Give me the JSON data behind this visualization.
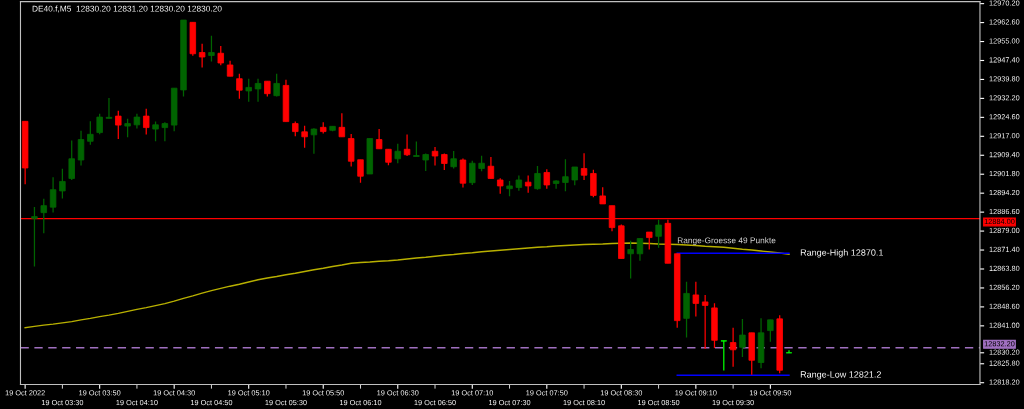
{
  "chart_data": {
    "type": "candlestick",
    "title": "DE40.f,M5  12830.20 12831.20 12830.20 12830.20",
    "categories": [
      "19 Oct 2022",
      null,
      null,
      null,
      "19 Oct 03:30",
      null,
      null,
      null,
      "19 Oct 03:50",
      null,
      null,
      null,
      "19 Oct 04:10",
      null,
      null,
      null,
      "19 Oct 04:30",
      null,
      null,
      null,
      "19 Oct 04:50",
      null,
      null,
      null,
      "19 Oct 05:10",
      null,
      null,
      null,
      "19 Oct 05:30",
      null,
      null,
      null,
      "19 Oct 05:50",
      null,
      null,
      null,
      "19 Oct 06:10",
      null,
      null,
      null,
      "19 Oct 06:30",
      null,
      null,
      null,
      "19 Oct 06:50",
      null,
      null,
      null,
      "19 Oct 07:10",
      null,
      null,
      null,
      "19 Oct 07:30",
      null,
      null,
      null,
      "19 Oct 07:50",
      null,
      null,
      null,
      "19 Oct 08:10",
      null,
      null,
      null,
      "19 Oct 08:30",
      null,
      null,
      null,
      "19 Oct 08:50",
      null,
      null,
      null,
      "19 Oct 09:10",
      null,
      null,
      null,
      "19 Oct 09:30",
      null,
      null,
      null,
      "19 Oct 09:50",
      null,
      null,
      null,
      null,
      null,
      null,
      null,
      null,
      null,
      null,
      null,
      null,
      null,
      null,
      null,
      null,
      null,
      null,
      null,
      null,
      null,
      null
    ],
    "ohlc": [
      [
        12923.0,
        12923.0,
        12897.8,
        12904.3
      ],
      [
        12884.1,
        12888.7,
        12864.8,
        12884.8
      ],
      [
        12886.4,
        12892.0,
        12878.1,
        12889.2
      ],
      [
        12888.6,
        12900.6,
        12886.5,
        12895.6
      ],
      [
        12895.1,
        12904.0,
        12892.1,
        12898.9
      ],
      [
        12900.1,
        12915.3,
        12899.5,
        12908.0
      ],
      [
        12907.5,
        12919.2,
        12905.3,
        12915.7
      ],
      [
        12915.0,
        12923.0,
        12913.6,
        12917.8
      ],
      [
        12918.5,
        12926.0,
        12917.8,
        12924.7
      ],
      [
        12924.2,
        12932.4,
        12924.1,
        12924.6
      ],
      [
        12925.1,
        12927.2,
        12915.9,
        12921.5
      ],
      [
        12921.1,
        12924.0,
        12916.6,
        12922.1
      ],
      [
        12921.6,
        12926.0,
        12920.1,
        12924.7
      ],
      [
        12925.1,
        12928.1,
        12917.7,
        12920.5
      ],
      [
        12919.9,
        12922.9,
        12915.0,
        12921.6
      ],
      [
        12920.5,
        12922.6,
        12915.0,
        12922.1
      ],
      [
        12921.5,
        12936.3,
        12919.0,
        12936.3
      ],
      [
        12935.6,
        12963.6,
        12933.0,
        12963.6
      ],
      [
        12962.7,
        12962.7,
        12949.3,
        12950.1
      ],
      [
        12950.6,
        12954.1,
        12944.6,
        12948.8
      ],
      [
        12949.4,
        12957.3,
        12947.0,
        12950.6
      ],
      [
        12950.3,
        12953.2,
        12945.5,
        12946.4
      ],
      [
        12945.6,
        12947.3,
        12941.1,
        12941.1
      ],
      [
        12940.1,
        12942.1,
        12932.1,
        12935.5
      ],
      [
        12935.2,
        12940.1,
        12930.9,
        12936.6
      ],
      [
        12936.0,
        12940.1,
        12930.9,
        12938.2
      ],
      [
        12939.1,
        12939.1,
        12933.0,
        12934.1
      ],
      [
        12933.3,
        12942.1,
        12933.0,
        12938.2
      ],
      [
        12937.4,
        12939.7,
        12922.9,
        12922.9
      ],
      [
        12922.1,
        12922.9,
        12917.0,
        12918.9
      ],
      [
        12918.8,
        12921.2,
        12912.4,
        12916.8
      ],
      [
        12917.6,
        12920.2,
        12910.0,
        12919.9
      ],
      [
        12920.6,
        12922.6,
        12918.1,
        12918.9
      ],
      [
        12919.4,
        12921.0,
        12919.0,
        12921.0
      ],
      [
        12920.6,
        12926.2,
        12916.8,
        12916.8
      ],
      [
        12916.1,
        12917.9,
        12904.9,
        12907.0
      ],
      [
        12907.6,
        12907.6,
        12898.4,
        12901.0
      ],
      [
        12901.9,
        12916.1,
        12901.9,
        12916.1
      ],
      [
        12915.7,
        12919.9,
        12912.0,
        12912.0
      ],
      [
        12911.8,
        12911.8,
        12905.4,
        12906.6
      ],
      [
        12908.0,
        12914.0,
        12906.2,
        12911.0
      ],
      [
        12911.8,
        12917.7,
        12909.1,
        12909.6
      ],
      [
        12908.9,
        12914.9,
        12908.9,
        12909.3
      ],
      [
        12907.5,
        12910.1,
        12903.1,
        12909.7
      ],
      [
        12911.0,
        12912.7,
        12905.3,
        12909.1
      ],
      [
        12909.7,
        12910.1,
        12903.5,
        12906.1
      ],
      [
        12904.8,
        12911.1,
        12904.1,
        12908.0
      ],
      [
        12907.5,
        12908.1,
        12896.5,
        12898.2
      ],
      [
        12898.4,
        12907.2,
        12897.5,
        12906.2
      ],
      [
        12904.1,
        12909.2,
        12903.0,
        12906.2
      ],
      [
        12905.0,
        12908.7,
        12900.1,
        12900.1
      ],
      [
        12899.5,
        12900.2,
        12894.0,
        12897.1
      ],
      [
        12896.0,
        12899.1,
        12893.0,
        12897.1
      ],
      [
        12896.5,
        12901.3,
        12895.2,
        12899.5
      ],
      [
        12898.6,
        12901.3,
        12894.4,
        12897.1
      ],
      [
        12896.0,
        12905.1,
        12895.6,
        12902.1
      ],
      [
        12902.5,
        12903.8,
        12896.0,
        12897.5
      ],
      [
        12898.1,
        12899.4,
        12896.0,
        12899.1
      ],
      [
        12898.5,
        12907.8,
        12895.0,
        12900.8
      ],
      [
        12899.5,
        12904.7,
        12897.4,
        12904.7
      ],
      [
        12904.1,
        12910.2,
        12899.5,
        12901.4
      ],
      [
        12902.1,
        12903.6,
        12892.6,
        12893.3
      ],
      [
        12893.1,
        12896.6,
        12889.9,
        12889.9
      ],
      [
        12889.2,
        12889.2,
        12878.9,
        12880.4
      ],
      [
        12881.1,
        12881.6,
        12868.0,
        12868.0
      ],
      [
        12869.9,
        12875.1,
        12860.0,
        12871.6
      ],
      [
        12869.9,
        12876.0,
        12867.1,
        12876.0
      ],
      [
        12878.6,
        12878.6,
        12871.6,
        12876.4
      ],
      [
        12876.9,
        12883.5,
        12872.3,
        12881.4
      ],
      [
        12882.1,
        12883.5,
        12866.1,
        12866.1
      ],
      [
        12869.9,
        12869.9,
        12840.2,
        12843.1
      ],
      [
        12844.0,
        12858.7,
        12836.3,
        12854.0
      ],
      [
        12853.4,
        12858.7,
        12844.7,
        12850.0
      ],
      [
        12850.6,
        12853.4,
        12831.7,
        12849.2
      ],
      [
        12848.2,
        12850.1,
        12832.1,
        12835.2
      ],
      [
        12834.9,
        12835.0,
        12823.1,
        12835.0
      ],
      [
        12834.3,
        12840.2,
        12824.6,
        12831.4
      ],
      [
        12832.4,
        12843.7,
        12828.5,
        12837.3
      ],
      [
        12838.2,
        12838.2,
        12821.4,
        12827.2
      ],
      [
        12826.3,
        12844.0,
        12824.0,
        12838.2
      ],
      [
        12839.1,
        12843.4,
        12834.6,
        12843.4
      ],
      [
        12843.8,
        12845.3,
        12822.0,
        12823.2
      ],
      [
        12830.2,
        12831.2,
        12830.2,
        12830.2
      ],
      null,
      null,
      null,
      null,
      null,
      null,
      null,
      null,
      null,
      null,
      null,
      null,
      null,
      null,
      null,
      null,
      null,
      null,
      null,
      null
    ],
    "colors": [
      "#ff0000",
      "#006400",
      "#006400",
      "#006400",
      "#006400",
      "#006400",
      "#006400",
      "#006400",
      "#006400",
      "#006400",
      "#ff0000",
      "#006400",
      "#006400",
      "#ff0000",
      "#006400",
      "#006400",
      "#006400",
      "#006400",
      "#ff0000",
      "#ff0000",
      "#006400",
      "#ff0000",
      "#ff0000",
      "#ff0000",
      "#006400",
      "#006400",
      "#ff0000",
      "#006400",
      "#ff0000",
      "#ff0000",
      "#ff0000",
      "#006400",
      "#ff0000",
      "#006400",
      "#ff0000",
      "#ff0000",
      "#ff0000",
      "#006400",
      "#ff0000",
      "#ff0000",
      "#006400",
      "#ff0000",
      "#006400",
      "#006400",
      "#ff0000",
      "#ff0000",
      "#006400",
      "#ff0000",
      "#006400",
      "#006400",
      "#ff0000",
      "#ff0000",
      "#006400",
      "#006400",
      "#ff0000",
      "#006400",
      "#ff0000",
      "#006400",
      "#006400",
      "#006400",
      "#ff0000",
      "#ff0000",
      "#ff0000",
      "#ff0000",
      "#ff0000",
      "#006400",
      "#006400",
      "#ff0000",
      "#006400",
      "#ff0000",
      "#ff0000",
      "#006400",
      "#ff0000",
      "#ff0000",
      "#ff0000",
      "#00ff00",
      "#ff0000",
      "#006400",
      "#ff0000",
      "#006400",
      "#006400",
      "#ff0000",
      "#00ff00",
      null,
      null,
      null,
      null,
      null,
      null,
      null,
      null,
      null,
      null,
      null,
      null,
      null,
      null,
      null,
      null,
      null,
      null,
      null,
      null
    ],
    "series": [
      {
        "type": "line",
        "color": "#b8b000",
        "values": [
          12840.3,
          12840.8,
          12841.3,
          12841.7,
          12842.2,
          12842.7,
          12843.4,
          12844.0,
          12844.7,
          12845.3,
          12846.0,
          12846.8,
          12847.6,
          12848.3,
          12849.1,
          12849.9,
          12850.9,
          12852.0,
          12853.0,
          12854.1,
          12855.1,
          12856.0,
          12856.9,
          12857.7,
          12858.6,
          12859.5,
          12860.2,
          12860.8,
          12861.5,
          12862.1,
          12862.8,
          12863.5,
          12864.1,
          12864.8,
          12865.4,
          12866.1,
          12866.4,
          12866.6,
          12866.9,
          12867.1,
          12867.4,
          12867.8,
          12868.2,
          12868.5,
          12868.9,
          12869.3,
          12869.6,
          12870.0,
          12870.3,
          12870.7,
          12871.0,
          12871.3,
          12871.6,
          12871.9,
          12872.2,
          12872.5,
          12872.7,
          12873.0,
          12873.2,
          12873.4,
          12873.6,
          12873.7,
          12873.8,
          12874.0,
          12874.1,
          12874.2,
          12874.1,
          12874.0,
          12873.8,
          12873.7,
          12873.6,
          12873.4,
          12873.2,
          12872.9,
          12872.7,
          12872.5,
          12872.1,
          12871.7,
          12871.4,
          12871.0,
          12870.6,
          12870.2,
          12869.7,
          null,
          null,
          null,
          null,
          null,
          null,
          null,
          null,
          null,
          null,
          null,
          null,
          null,
          null,
          null,
          null,
          null,
          null,
          null,
          null
        ]
      },
      {
        "type": "line",
        "name": "Range-High 12870.1",
        "color": "#0000ff",
        "values": [
          null,
          null,
          null,
          null,
          null,
          null,
          null,
          null,
          null,
          null,
          null,
          null,
          null,
          null,
          null,
          null,
          null,
          null,
          null,
          null,
          null,
          null,
          null,
          null,
          null,
          null,
          null,
          null,
          null,
          null,
          null,
          null,
          null,
          null,
          null,
          null,
          null,
          null,
          null,
          null,
          null,
          null,
          null,
          null,
          null,
          null,
          null,
          null,
          null,
          null,
          null,
          null,
          null,
          null,
          null,
          null,
          null,
          null,
          null,
          null,
          null,
          null,
          null,
          null,
          null,
          null,
          null,
          null,
          null,
          null,
          12870.1,
          12870.1,
          12870.1,
          12870.1,
          12870.1,
          12870.1,
          12870.1,
          12870.1,
          12870.1,
          12870.1,
          12870.1,
          12870.1,
          12870.1,
          null,
          null,
          null,
          null,
          null,
          null,
          null,
          null,
          null,
          null,
          null,
          null,
          null,
          null,
          null,
          null,
          null,
          null,
          null,
          null
        ]
      },
      {
        "type": "line",
        "name": "Range-Low 12821.2",
        "color": "#0000ff",
        "values": [
          null,
          null,
          null,
          null,
          null,
          null,
          null,
          null,
          null,
          null,
          null,
          null,
          null,
          null,
          null,
          null,
          null,
          null,
          null,
          null,
          null,
          null,
          null,
          null,
          null,
          null,
          null,
          null,
          null,
          null,
          null,
          null,
          null,
          null,
          null,
          null,
          null,
          null,
          null,
          null,
          null,
          null,
          null,
          null,
          null,
          null,
          null,
          null,
          null,
          null,
          null,
          null,
          null,
          null,
          null,
          null,
          null,
          null,
          null,
          null,
          null,
          null,
          null,
          null,
          null,
          null,
          null,
          null,
          null,
          null,
          12821.2,
          12821.2,
          12821.2,
          12821.2,
          12821.2,
          12821.2,
          12821.2,
          12821.2,
          12821.2,
          12821.2,
          12821.2,
          12821.2,
          12821.2,
          null,
          null,
          null,
          null,
          null,
          null,
          null,
          null,
          null,
          null,
          null,
          null,
          null,
          null,
          null,
          null,
          null,
          null,
          null,
          null
        ]
      }
    ],
    "annotations": [
      "Range-Groesse 49 Punkte"
    ],
    "ref_lines": [
      {
        "axis": "y",
        "value": 12884.0,
        "label": "12884.00",
        "color": "#ff0000",
        "line_style": "solid"
      },
      {
        "axis": "y",
        "value": 12832.2,
        "label": "12832.20",
        "color": "#a070c0",
        "line_style": "dashed"
      }
    ],
    "ylim": [
      12817.5,
      12971.0
    ],
    "yticks": [
      {
        "value": 12970.2,
        "label": "12970.20"
      },
      {
        "value": 12962.6,
        "label": "12962.60"
      },
      {
        "value": 12955.0,
        "label": "12955.00"
      },
      {
        "value": 12947.4,
        "label": "12947.40"
      },
      {
        "value": 12939.8,
        "label": "12939.80"
      },
      {
        "value": 12932.2,
        "label": "12932.20"
      },
      {
        "value": 12924.6,
        "label": "12924.60"
      },
      {
        "value": 12917.0,
        "label": "12917.00"
      },
      {
        "value": 12909.4,
        "label": "12909.40"
      },
      {
        "value": 12901.8,
        "label": "12901.80"
      },
      {
        "value": 12894.2,
        "label": "12894.20"
      },
      {
        "value": 12886.6,
        "label": "12886.60"
      },
      {
        "value": 12879.0,
        "label": "12879.00"
      },
      {
        "value": 12871.4,
        "label": "12871.40"
      },
      {
        "value": 12863.8,
        "label": "12863.80"
      },
      {
        "value": 12856.2,
        "label": "12856.20"
      },
      {
        "value": 12848.6,
        "label": "12848.60"
      },
      {
        "value": 12841.0,
        "label": "12841.00"
      },
      {
        "value": 12830.2,
        "label": "12830.20"
      },
      {
        "value": 12825.8,
        "label": "12825.80"
      },
      {
        "value": 12818.2,
        "label": "12818.20"
      }
    ],
    "grid": false,
    "legend": false
  }
}
